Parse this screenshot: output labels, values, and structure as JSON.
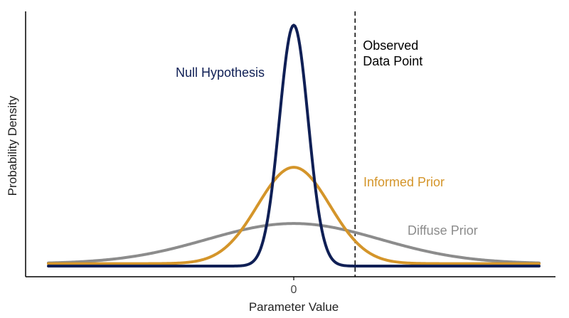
{
  "chart_data": {
    "type": "line",
    "title": "",
    "xlabel": "Parameter Value",
    "ylabel": "Probability Density",
    "x_ticks": [
      {
        "value": 0,
        "label": "0"
      }
    ],
    "xlim": [
      -3.4,
      3.4
    ],
    "ylim": [
      0,
      2.05
    ],
    "grid": false,
    "legend": "none",
    "series": [
      {
        "name": "Null Hypothesis",
        "distribution": "normal",
        "mean": 0,
        "sd": 0.2,
        "offset": 0,
        "color": "#0f1f55"
      },
      {
        "name": "Informed Prior",
        "distribution": "normal",
        "mean": 0,
        "sd": 0.5,
        "offset": 0.02,
        "color": "#d4952a"
      },
      {
        "name": "Diffuse Prior",
        "distribution": "normal",
        "mean": 0,
        "sd": 1.2,
        "offset": 0.02,
        "color": "#8c8c8c"
      }
    ],
    "annotations": [
      {
        "type": "vline",
        "x": 0.85,
        "style": "dashed",
        "color": "#000000",
        "label_lines": [
          "Observed",
          "Data Point"
        ]
      }
    ]
  }
}
